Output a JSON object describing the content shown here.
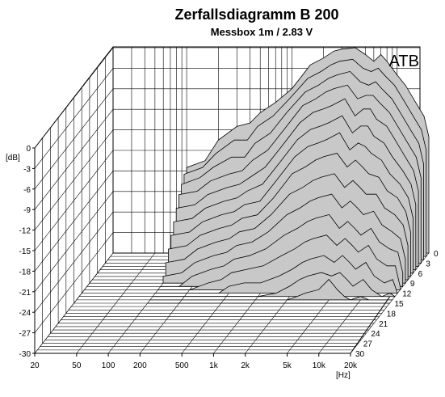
{
  "chart_data": {
    "type": "area",
    "title": "Zerfallsdiagramm  B 200",
    "subtitle": "Messbox 1m / 2.83 V",
    "badge": "ATB",
    "xlabel": "[Hz]",
    "ylabel": "[dB]",
    "zlabel": "",
    "x_scale": "log",
    "xlim": [
      20,
      20000
    ],
    "ylim": [
      -30,
      0
    ],
    "zlim": [
      0,
      30
    ],
    "x_ticks": [
      "20",
      "50",
      "100",
      "200",
      "500",
      "1k",
      "2k",
      "5k",
      "10k",
      "20k"
    ],
    "x_tick_values": [
      20,
      50,
      100,
      200,
      500,
      1000,
      2000,
      5000,
      10000,
      20000
    ],
    "y_ticks": [
      "0",
      "-3",
      "-6",
      "-9",
      "-12",
      "-15",
      "-18",
      "-21",
      "-24",
      "-27",
      "-30"
    ],
    "y_tick_values": [
      0,
      -3,
      -6,
      -9,
      -12,
      -15,
      -18,
      -21,
      -24,
      -27,
      -30
    ],
    "z_ticks": [
      "0",
      "3",
      "6",
      "9",
      "12",
      "15",
      "18",
      "21",
      "24",
      "27",
      "30"
    ],
    "z_tick_values": [
      0,
      3,
      6,
      9,
      12,
      15,
      18,
      21,
      24,
      27,
      30
    ],
    "grid": true,
    "fill_color": "#c8c8c8",
    "line_color": "#000000",
    "frequencies": [
      100,
      150,
      200,
      300,
      400,
      500,
      700,
      1000,
      1500,
      2000,
      2500,
      3000,
      4000,
      5000,
      6000,
      7000,
      8000,
      10000,
      12000,
      15000,
      18000,
      20000
    ],
    "series": [
      {
        "time": 0,
        "values": [
          -17.5,
          -16.5,
          -13.5,
          -11.5,
          -11,
          -9.5,
          -8,
          -6,
          -2.5,
          -1.5,
          -0.5,
          -0.2,
          0,
          -1,
          -2,
          -1,
          -2,
          -4,
          -5.5,
          -8,
          -10,
          -13
        ]
      },
      {
        "time": 1,
        "values": [
          -18,
          -17,
          -15,
          -13,
          -13,
          -11,
          -9.5,
          -7,
          -4,
          -3,
          -2,
          -1.5,
          -1.2,
          -2.5,
          -3,
          -2.5,
          -3.5,
          -5,
          -7,
          -9.5,
          -11.5,
          -14.5
        ]
      },
      {
        "time": 2,
        "values": [
          -19,
          -18,
          -16.5,
          -15,
          -15,
          -13,
          -11.5,
          -8.5,
          -5.5,
          -4.5,
          -3.5,
          -3,
          -2.5,
          -4,
          -4.5,
          -4,
          -5,
          -6.5,
          -8.5,
          -11,
          -13,
          -16
        ]
      },
      {
        "time": 3,
        "values": [
          -20,
          -19.5,
          -18,
          -17,
          -16.5,
          -15,
          -13.5,
          -10.5,
          -7,
          -6,
          -5,
          -4.5,
          -4,
          -6,
          -5.5,
          -5.5,
          -6.5,
          -8,
          -10,
          -12.5,
          -14.5,
          -17.5
        ]
      },
      {
        "time": 4,
        "values": [
          -21.5,
          -21,
          -19.5,
          -18.5,
          -18,
          -17,
          -15.5,
          -12.5,
          -9,
          -7.5,
          -7,
          -6.5,
          -5.5,
          -8,
          -7,
          -7,
          -8.5,
          -9.5,
          -11.5,
          -14,
          -16,
          -19
        ]
      },
      {
        "time": 5,
        "values": [
          -23,
          -22.5,
          -21,
          -20,
          -19.5,
          -18.5,
          -17.5,
          -14.5,
          -11,
          -9.5,
          -9,
          -8.5,
          -7.5,
          -10,
          -9,
          -9,
          -10.5,
          -11.5,
          -13.5,
          -15.5,
          -17.5,
          -20.5
        ]
      },
      {
        "time": 6,
        "values": [
          -24.5,
          -24,
          -22.5,
          -21.5,
          -21,
          -20,
          -19.5,
          -16.5,
          -13,
          -11.5,
          -11,
          -10.5,
          -9.5,
          -12,
          -11,
          -11.5,
          -12.5,
          -13.5,
          -15.5,
          -17,
          -19,
          -22
        ]
      },
      {
        "time": 7,
        "values": [
          -26,
          -25.5,
          -24,
          -23,
          -22.5,
          -21.5,
          -21,
          -18.5,
          -15,
          -14,
          -13,
          -12.5,
          -12,
          -14,
          -13,
          -14,
          -15,
          -15.5,
          -17.5,
          -18.5,
          -20.5,
          -23.5
        ]
      },
      {
        "time": 8,
        "values": [
          -27.5,
          -27,
          -25.5,
          -24.5,
          -24,
          -23,
          -22.5,
          -20.5,
          -17.5,
          -16.5,
          -15.5,
          -15,
          -14.5,
          -16.5,
          -15.5,
          -16.5,
          -17.5,
          -17.5,
          -19.5,
          -20.5,
          -22,
          -25
        ]
      },
      {
        "time": 9,
        "values": [
          -29,
          -28.5,
          -27,
          -26,
          -25.5,
          -24.5,
          -24,
          -22.5,
          -20,
          -19,
          -18,
          -17.5,
          -17,
          -19,
          -18,
          -19,
          -20,
          -19.5,
          -21.5,
          -22.5,
          -23.5,
          -26.5
        ]
      },
      {
        "time": 10,
        "values": [
          -30,
          -30,
          -28.5,
          -27.5,
          -27,
          -26,
          -25.5,
          -24.5,
          -22.5,
          -21.5,
          -20.5,
          -20,
          -19.5,
          -21.5,
          -20.5,
          -21.5,
          -22.5,
          -21.5,
          -23.5,
          -24.5,
          -25,
          -28
        ]
      },
      {
        "time": 11,
        "values": [
          -30,
          -30,
          -30,
          -29,
          -28.5,
          -27.5,
          -27,
          -26.5,
          -25,
          -24,
          -23,
          -22.5,
          -22,
          -23.5,
          -22.5,
          -23.5,
          -24.5,
          -23.5,
          -25.5,
          -26.5,
          -26.5,
          -29.5
        ]
      },
      {
        "time": 12,
        "values": [
          -30,
          -30,
          -30,
          -30,
          -30,
          -29,
          -28.5,
          -28.5,
          -27.5,
          -26.5,
          -25.5,
          -25,
          -24.5,
          -25.5,
          -24.5,
          -25.5,
          -26.5,
          -25.5,
          -27.5,
          -28.5,
          -28,
          -30
        ]
      },
      {
        "time": 13,
        "values": [
          -30,
          -30,
          -30,
          -30,
          -30,
          -30,
          -30,
          -30,
          -29.5,
          -28.5,
          -27.5,
          -27,
          -26.5,
          -27,
          -26.5,
          -27.5,
          -28.5,
          -27.5,
          -29,
          -30,
          -29.5,
          -30
        ]
      },
      {
        "time": 14,
        "values": [
          -30,
          -30,
          -30,
          -30,
          -30,
          -30,
          -30,
          -30,
          -30,
          -30,
          -29.5,
          -29,
          -28.5,
          -27,
          -28.5,
          -29.5,
          -30,
          -29.5,
          -30,
          -30,
          -30,
          -30
        ]
      },
      {
        "time": 15,
        "values": [
          -30,
          -30,
          -30,
          -30,
          -30,
          -30,
          -30,
          -30,
          -30,
          -30,
          -30,
          -30,
          -30,
          -30,
          -30,
          -30,
          -30,
          -30,
          -30,
          -30,
          -30,
          -30
        ]
      }
    ]
  }
}
